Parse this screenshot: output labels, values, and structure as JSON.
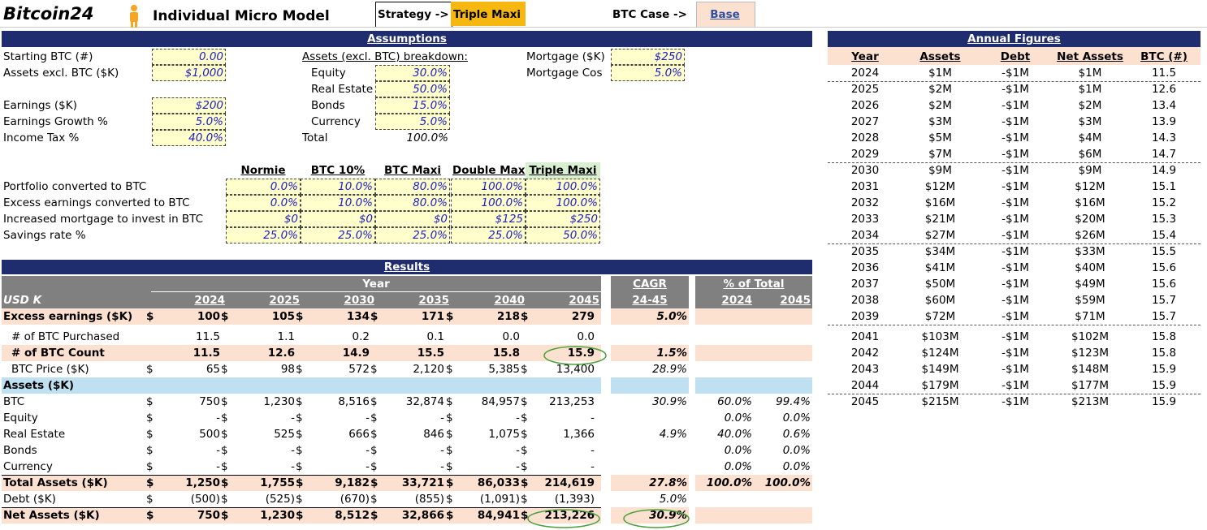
{
  "header": {
    "brand": "Bitcoin24",
    "title": "Individual Micro Model",
    "strategy_label": "Strategy ->",
    "strategy": "Triple Maxi",
    "case_label": "BTC Case ->",
    "case": "Base"
  },
  "assumptions": {
    "title": "Assumptions",
    "inputs": [
      {
        "label": "Starting BTC (#)",
        "value": "0.00"
      },
      {
        "label": "Assets excl. BTC ($K)",
        "value": "$1,000"
      },
      null,
      {
        "label": "Earnings ($K)",
        "value": "$200"
      },
      {
        "label": "Earnings Growth %",
        "value": "5.0%"
      },
      {
        "label": "Income Tax %",
        "value": "40.0%"
      }
    ],
    "breakdown": {
      "title": "Assets (excl. BTC) breakdown:",
      "rows": [
        {
          "label": "Equity",
          "value": "30.0%"
        },
        {
          "label": "Real Estate",
          "value": "50.0%"
        },
        {
          "label": "Bonds",
          "value": "15.0%"
        },
        {
          "label": "Currency",
          "value": "5.0%"
        }
      ],
      "total": {
        "label": "Total",
        "value": "100.0%"
      }
    },
    "mortgage": [
      {
        "label": "Mortgage ($K)",
        "value": "$250"
      },
      {
        "label": "Mortgage Cos",
        "value": "5.0%"
      }
    ]
  },
  "strategies": {
    "headers": [
      "Normie",
      "BTC 10%",
      "BTC Maxi",
      "Double Max",
      "Triple Maxi"
    ],
    "rows": [
      {
        "label": "Portfolio converted to BTC",
        "values": [
          "0.0%",
          "10.0%",
          "80.0%",
          "100.0%",
          "100.0%"
        ]
      },
      {
        "label": "Excess earnings converted to BTC",
        "values": [
          "0.0%",
          "10.0%",
          "80.0%",
          "100.0%",
          "100.0%"
        ]
      },
      {
        "label": "Increased mortgage to invest in BTC",
        "values": [
          "$0",
          "$0",
          "$0",
          "$125",
          "$250"
        ]
      },
      {
        "label": "Savings rate %",
        "values": [
          "25.0%",
          "25.0%",
          "25.0%",
          "25.0%",
          "50.0%"
        ]
      }
    ]
  },
  "results": {
    "title": "Results",
    "year_header": "Year",
    "unit": "USD K",
    "years": [
      "2024",
      "2025",
      "2030",
      "2035",
      "2040",
      "2045"
    ],
    "cagr_header": "CAGR",
    "cagr_sub": "24-45",
    "pct_header": "% of Total",
    "pct_years": [
      "2024",
      "2045"
    ],
    "rows": [
      {
        "label": "Excess earnings ($K)",
        "currency": "$",
        "values": [
          "100",
          "105",
          "134",
          "171",
          "218",
          "279"
        ],
        "cagr": "5.0%",
        "highlight": true,
        "bold": true
      },
      {
        "label": "# of BTC Purchased",
        "values": [
          "11.5",
          "1.1",
          "0.2",
          "0.1",
          "0.0",
          "0.0"
        ],
        "indent": true
      },
      {
        "label": "# of BTC Count",
        "values": [
          "11.5",
          "12.6",
          "14.9",
          "15.5",
          "15.8",
          "15.9"
        ],
        "cagr": "1.5%",
        "highlight": true,
        "bold": true,
        "indent": true
      },
      {
        "label": "BTC Price ($K)",
        "currency": "$",
        "values": [
          "65",
          "98",
          "572",
          "2,120",
          "5,385",
          "13,400"
        ],
        "cagr": "28.9%",
        "indent": true
      },
      {
        "label": "Assets ($K)",
        "section": true
      },
      {
        "label": "BTC",
        "currency": "$",
        "values": [
          "750",
          "1,230",
          "8,516",
          "32,874",
          "84,957",
          "213,253"
        ],
        "cagr": "30.9%",
        "pct": [
          "60.0%",
          "99.4%"
        ]
      },
      {
        "label": "Equity",
        "currency": "$",
        "values": [
          "-",
          "-",
          "-",
          "-",
          "-",
          "-"
        ],
        "pct": [
          "0.0%",
          "0.0%"
        ]
      },
      {
        "label": "Real Estate",
        "currency": "$",
        "values": [
          "500",
          "525",
          "666",
          "846",
          "1,075",
          "1,366"
        ],
        "cagr": "4.9%",
        "pct": [
          "40.0%",
          "0.6%"
        ]
      },
      {
        "label": "Bonds",
        "currency": "$",
        "values": [
          "-",
          "-",
          "-",
          "-",
          "-",
          "-"
        ],
        "pct": [
          "0.0%",
          "0.0%"
        ]
      },
      {
        "label": "Currency",
        "currency": "$",
        "values": [
          "-",
          "-",
          "-",
          "-",
          "-",
          "-"
        ],
        "pct": [
          "0.0%",
          "0.0%"
        ]
      },
      {
        "label": "Total Assets ($K)",
        "currency": "$",
        "values": [
          "1,250",
          "1,755",
          "9,182",
          "33,721",
          "86,033",
          "214,619"
        ],
        "cagr": "27.8%",
        "pct": [
          "100.0%",
          "100.0%"
        ],
        "highlight": true,
        "bold": true
      },
      {
        "label": "Debt ($K)",
        "currency": "$",
        "values": [
          "(500)",
          "(525)",
          "(670)",
          "(855)",
          "(1,091)",
          "(1,393)"
        ],
        "cagr": "5.0%"
      },
      {
        "label": "Net Assets ($K)",
        "currency": "$",
        "values": [
          "750",
          "1,230",
          "8,512",
          "32,866",
          "84,941",
          "213,226"
        ],
        "cagr": "30.9%",
        "highlight": true,
        "bold": true
      }
    ]
  },
  "annual": {
    "title": "Annual Figures",
    "headers": [
      "Year",
      "Assets",
      "Debt",
      "Net Assets",
      "BTC (#)"
    ],
    "rows": [
      [
        "2024",
        "$1M",
        "-$1M",
        "$1M",
        "11.5"
      ],
      [
        "2025",
        "$2M",
        "-$1M",
        "$1M",
        "12.6"
      ],
      [
        "2026",
        "$2M",
        "-$1M",
        "$2M",
        "13.4"
      ],
      [
        "2027",
        "$3M",
        "-$1M",
        "$3M",
        "13.9"
      ],
      [
        "2028",
        "$5M",
        "-$1M",
        "$4M",
        "14.3"
      ],
      [
        "2029",
        "$7M",
        "-$1M",
        "$6M",
        "14.7"
      ],
      [
        "2030",
        "$9M",
        "-$1M",
        "$9M",
        "14.9"
      ],
      [
        "2031",
        "$12M",
        "-$1M",
        "$12M",
        "15.1"
      ],
      [
        "2032",
        "$16M",
        "-$1M",
        "$16M",
        "15.2"
      ],
      [
        "2033",
        "$21M",
        "-$1M",
        "$20M",
        "15.3"
      ],
      [
        "2034",
        "$27M",
        "-$1M",
        "$26M",
        "15.4"
      ],
      [
        "2035",
        "$34M",
        "-$1M",
        "$33M",
        "15.5"
      ],
      [
        "2036",
        "$41M",
        "-$1M",
        "$40M",
        "15.6"
      ],
      [
        "2037",
        "$50M",
        "-$1M",
        "$49M",
        "15.6"
      ],
      [
        "2038",
        "$60M",
        "-$1M",
        "$59M",
        "15.7"
      ],
      [
        "2039",
        "$72M",
        "-$1M",
        "$71M",
        "15.7"
      ],
      [
        "2041",
        "$103M",
        "-$1M",
        "$102M",
        "15.8"
      ],
      [
        "2042",
        "$124M",
        "-$1M",
        "$123M",
        "15.8"
      ],
      [
        "2043",
        "$149M",
        "-$1M",
        "$148M",
        "15.9"
      ],
      [
        "2044",
        "$179M",
        "-$1M",
        "$177M",
        "15.9"
      ],
      [
        "2045",
        "$215M",
        "-$1M",
        "$213M",
        "15.9"
      ]
    ]
  }
}
